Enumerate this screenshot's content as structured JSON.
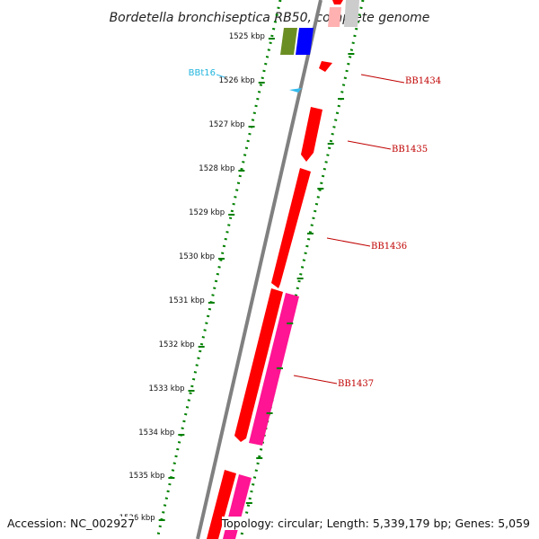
{
  "title": "Bordetella bronchiseptica RB50, complete genome",
  "ticks": [
    "1525 kbp",
    "1526 kbp",
    "1527 kbp",
    "1528 kbp",
    "1529 kbp",
    "1530 kbp",
    "1531 kbp",
    "1532 kbp",
    "1533 kbp",
    "1534 kbp",
    "1535 kbp",
    "1536 kbp"
  ],
  "genes": [
    {
      "label": "BB1434",
      "color": "#ff0000"
    },
    {
      "label": "BB1435",
      "color": "#ff0000"
    },
    {
      "label": "BB1436",
      "color": "#ff0000"
    },
    {
      "label": "BB1437",
      "color": "#ff1493"
    }
  ],
  "rna": {
    "label": "BBt16",
    "color": "#33bbee"
  },
  "colors": {
    "backbone": "#808080",
    "dots": "#008000",
    "feature_green": "#6b8e23",
    "feature_blue": "#0000ff",
    "feature_red": "#ff0000",
    "feature_pink": "#ff1493",
    "label_red": "#c00000"
  },
  "footer": {
    "accession": "Accession: NC_002927",
    "topology": "Topology: circular; Length: 5,339,179 bp; Genes: 5,059"
  }
}
